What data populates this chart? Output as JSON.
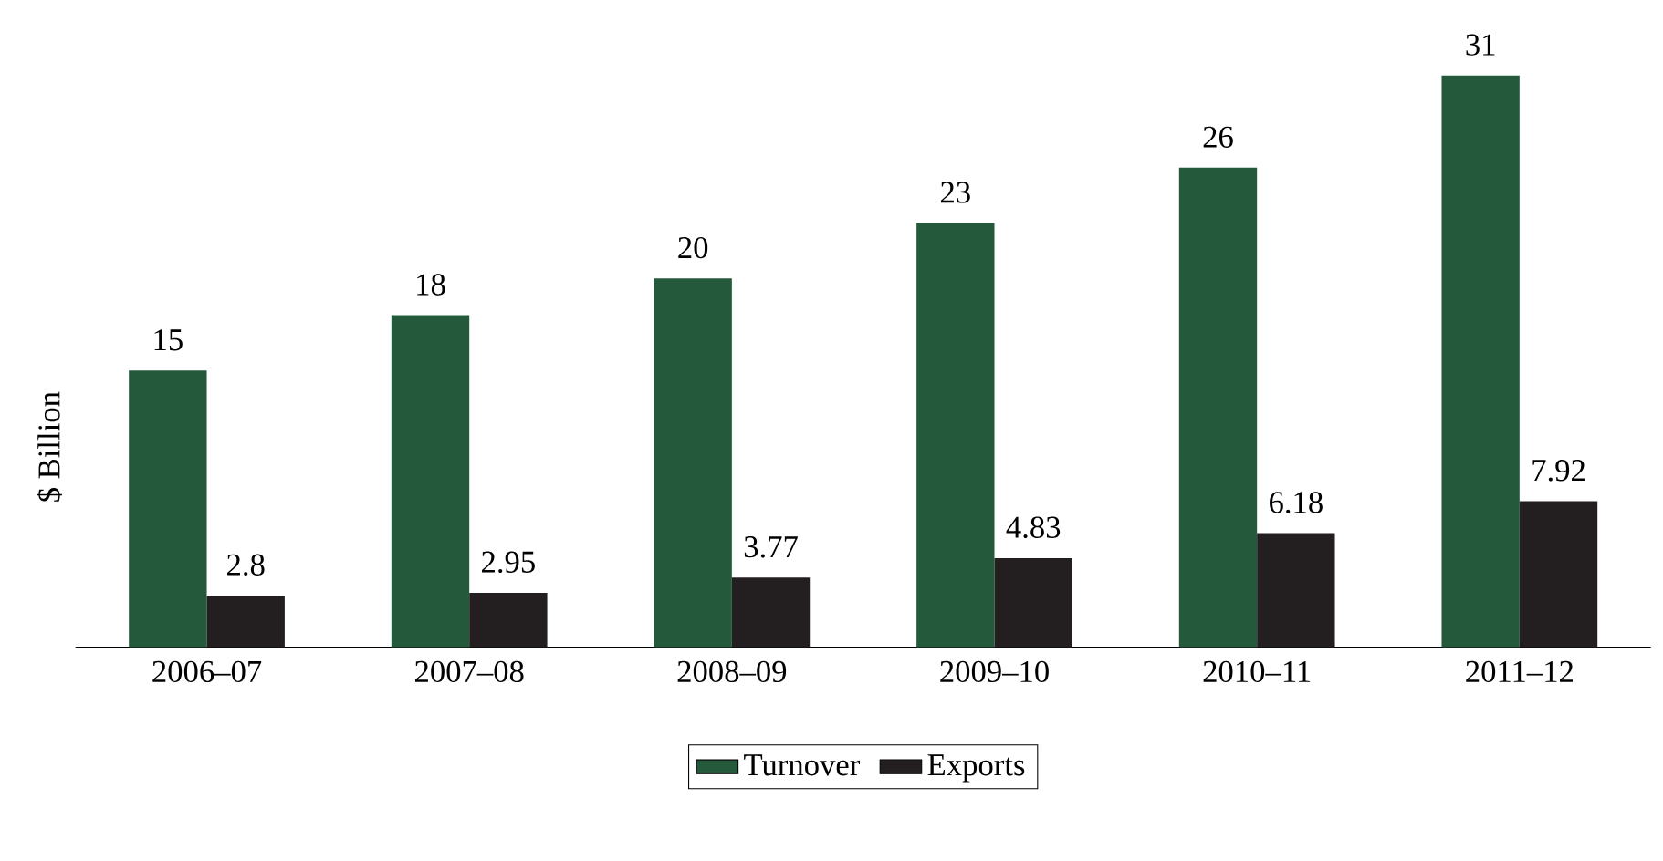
{
  "chart_data": {
    "type": "bar",
    "ylabel": "$ Billion",
    "categories": [
      "2006–07",
      "2007–08",
      "2008–09",
      "2009–10",
      "2010–11",
      "2011–12"
    ],
    "series": [
      {
        "name": "Turnover",
        "color": "#245a3b",
        "values": [
          15,
          18,
          20,
          23,
          26,
          31
        ]
      },
      {
        "name": "Exports",
        "color": "#231f20",
        "values": [
          2.8,
          2.95,
          3.77,
          4.83,
          6.18,
          7.92
        ]
      }
    ],
    "data_labels": true,
    "legend": "bottom"
  }
}
